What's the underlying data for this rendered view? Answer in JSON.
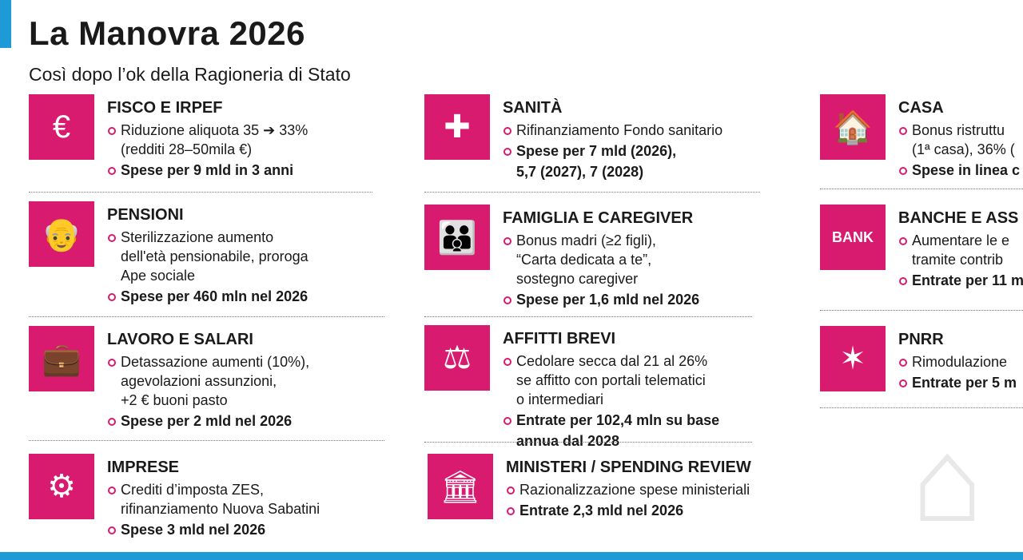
{
  "title": "La Manovra 2026",
  "subtitle": "Così dopo l’ok della Ragioneria di Stato",
  "colors": {
    "accent": "#d81b6f",
    "bar": "#1e9bd7"
  },
  "sections": [
    {
      "icon": "coins-euro-icon",
      "glyph": "€",
      "heading": "FISCO E IRPEF",
      "bullets": [
        "Riduzione aliquota 35 ➔ 33%",
        "(redditi 28–50mila €)"
      ],
      "bold": [
        "Spese per 9 mld in 3 anni"
      ]
    },
    {
      "icon": "elderly-couple-icon",
      "glyph": "👴",
      "heading": "PENSIONI",
      "bullets": [
        "Sterilizzazione aumento",
        "dell'età pensionabile, proroga",
        "Ape sociale"
      ],
      "bold": [
        "Spese per 460 mln nel 2026"
      ]
    },
    {
      "icon": "briefcase-icon",
      "glyph": "💼",
      "heading": "LAVORO E SALARI",
      "bullets": [
        "Detassazione aumenti (10%),",
        "agevolazioni assunzioni,",
        "+2 € buoni pasto"
      ],
      "bold": [
        "Spese per 2 mld nel 2026"
      ]
    },
    {
      "icon": "business-gear-icon",
      "glyph": "⚙",
      "heading": "IMPRESE",
      "bullets": [
        "Crediti d’imposta ZES,",
        "rifinanziamento Nuova Sabatini"
      ],
      "bold": [
        "Spese 3 mld nel 2026"
      ]
    },
    {
      "icon": "health-hands-icon",
      "glyph": "✚",
      "heading": "SANITÀ",
      "bullets": [
        "Rifinanziamento Fondo sanitario"
      ],
      "bold": [
        "Spese per 7 mld (2026),",
        "5,7 (2027), 7 (2028)"
      ]
    },
    {
      "icon": "family-icon",
      "glyph": "👪",
      "heading": "FAMIGLIA E CAREGIVER",
      "bullets": [
        "Bonus madri (≥2 figli),",
        "“Carta dedicata a te”,",
        "sostegno caregiver"
      ],
      "bold": [
        "Spese per 1,6 mld nel 2026"
      ]
    },
    {
      "icon": "gavel-icon",
      "glyph": "⚖",
      "heading": "AFFITTI BREVI",
      "bullets": [
        "Cedolare secca dal 21 al 26%",
        "se affitto con portali telematici",
        "o intermediari"
      ],
      "bold": [
        "Entrate per 102,4 mln su base",
        "annua dal 2028"
      ]
    },
    {
      "icon": "ministry-building-icon",
      "glyph": "🏛",
      "heading": "MINISTERI / SPENDING REVIEW",
      "bullets": [
        "Razionalizzazione spese ministeriali"
      ],
      "bold": [
        "Entrate 2,3 mld nel 2026"
      ]
    },
    {
      "icon": "house-icon",
      "glyph": "🏠",
      "heading": "CASA",
      "bullets": [
        "Bonus ristruttu",
        "(1ª casa), 36% ("
      ],
      "bold": [
        "Spese in linea c"
      ]
    },
    {
      "icon": "bank-icon",
      "glyph": "BANK",
      "heading": "BANCHE E ASS",
      "bullets": [
        "Aumentare le e",
        "tramite contrib"
      ],
      "bold": [
        "Entrate per 11 m"
      ]
    },
    {
      "icon": "eu-stars-icon",
      "glyph": "✶",
      "heading": "PNRR",
      "bullets": [
        "Rimodulazione"
      ],
      "bold": [
        "Entrate per 5 m"
      ]
    }
  ]
}
